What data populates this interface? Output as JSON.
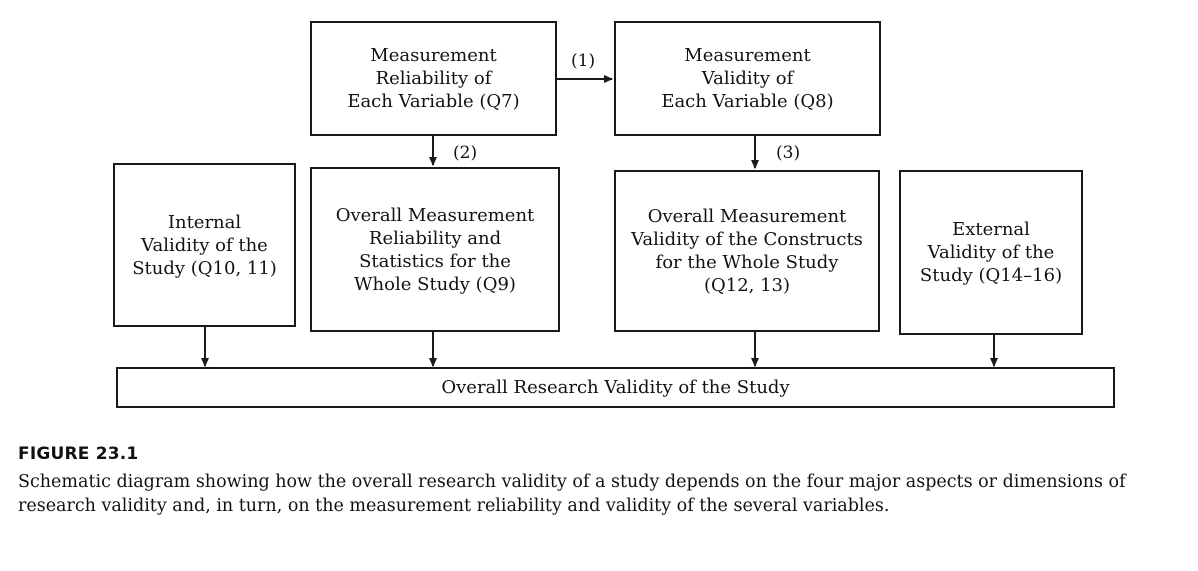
{
  "boxes": {
    "reliability_each": [
      "Measurement",
      "Reliability of",
      "Each Variable (Q7)"
    ],
    "validity_each": [
      "Measurement",
      "Validity of",
      "Each Variable (Q8)"
    ],
    "internal": [
      "Internal",
      "Validity of the",
      "Study (Q10, 11)"
    ],
    "overall_reliability": [
      "Overall Measurement",
      "Reliability and",
      "Statistics for the",
      "Whole Study (Q9)"
    ],
    "overall_validity": [
      "Overall Measurement",
      "Validity of the Constructs",
      "for the Whole Study",
      "(Q12, 13)"
    ],
    "external": [
      "External",
      "Validity of the",
      "Study (Q14–16)"
    ],
    "overall_research": "Overall Research Validity of the Study"
  },
  "arrow_labels": {
    "a1": "(1)",
    "a2": "(2)",
    "a3": "(3)"
  },
  "caption": {
    "title": "FIGURE 23.1",
    "text": "Schematic diagram showing how the overall research validity of a study depends on the four major aspects or dimensions of research validity and, in turn, on the measurement reliability and validity of the several variables."
  }
}
